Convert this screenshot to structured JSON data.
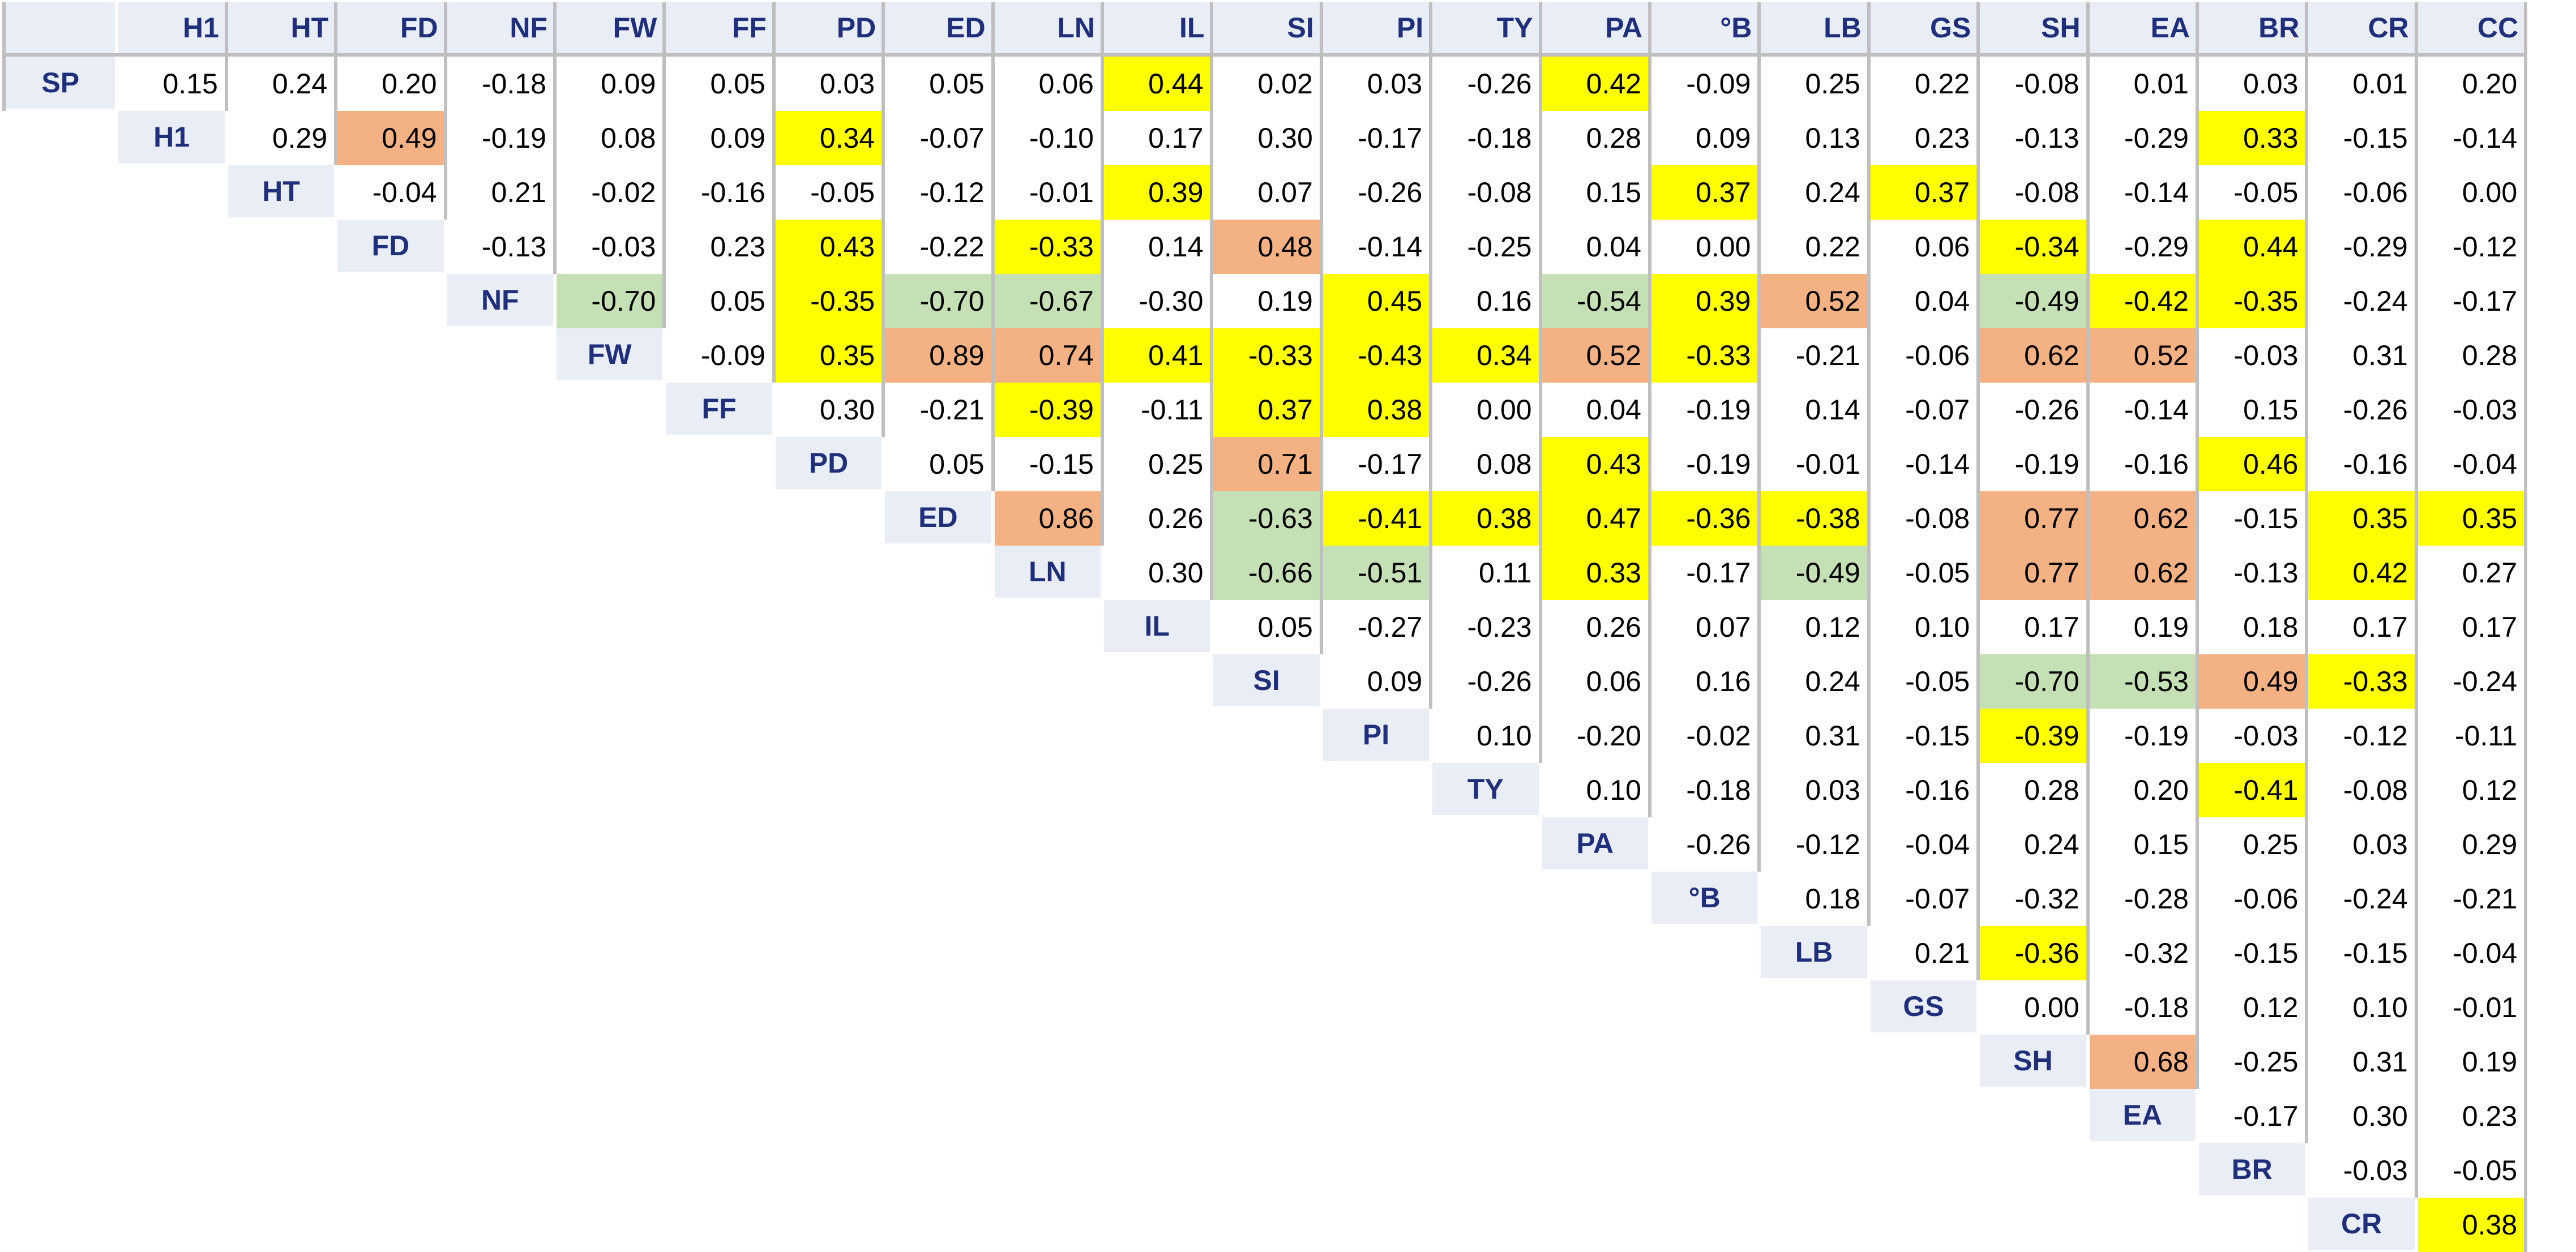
{
  "chart_data": {
    "type": "heatmap",
    "columns": [
      "H1",
      "HT",
      "FD",
      "NF",
      "FW",
      "FF",
      "PD",
      "ED",
      "LN",
      "IL",
      "SI",
      "PI",
      "TY",
      "PA",
      "°B",
      "LB",
      "GS",
      "SH",
      "EA",
      "BR",
      "CR",
      "CC"
    ],
    "rows": [
      "SP",
      "H1",
      "HT",
      "FD",
      "NF",
      "FW",
      "FF",
      "PD",
      "ED",
      "LN",
      "IL",
      "SI",
      "PI",
      "TY",
      "PA",
      "°B",
      "LB",
      "GS",
      "SH",
      "EA",
      "BR",
      "CR"
    ],
    "values": [
      [
        "0.15",
        "0.24",
        "0.20",
        "-0.18",
        "0.09",
        "0.05",
        "0.03",
        "0.05",
        "0.06",
        "0.44",
        "0.02",
        "0.03",
        "-0.26",
        "0.42",
        "-0.09",
        "0.25",
        "0.22",
        "-0.08",
        "0.01",
        "0.03",
        "0.01",
        "0.20"
      ],
      [
        "0.29",
        "0.49",
        "-0.19",
        "0.08",
        "0.09",
        "0.34",
        "-0.07",
        "-0.10",
        "0.17",
        "0.30",
        "-0.17",
        "-0.18",
        "0.28",
        "0.09",
        "0.13",
        "0.23",
        "-0.13",
        "-0.29",
        "0.33",
        "-0.15",
        "-0.14"
      ],
      [
        "-0.04",
        "0.21",
        "-0.02",
        "-0.16",
        "-0.05",
        "-0.12",
        "-0.01",
        "0.39",
        "0.07",
        "-0.26",
        "-0.08",
        "0.15",
        "0.37",
        "0.24",
        "0.37",
        "-0.08",
        "-0.14",
        "-0.05",
        "-0.06",
        "0.00"
      ],
      [
        "-0.13",
        "-0.03",
        "0.23",
        "0.43",
        "-0.22",
        "-0.33",
        "0.14",
        "0.48",
        "-0.14",
        "-0.25",
        "0.04",
        "0.00",
        "0.22",
        "0.06",
        "-0.34",
        "-0.29",
        "0.44",
        "-0.29",
        "-0.12"
      ],
      [
        "-0.70",
        "0.05",
        "-0.35",
        "-0.70",
        "-0.67",
        "-0.30",
        "0.19",
        "0.45",
        "0.16",
        "-0.54",
        "0.39",
        "0.52",
        "0.04",
        "-0.49",
        "-0.42",
        "-0.35",
        "-0.24",
        "-0.17"
      ],
      [
        "-0.09",
        "0.35",
        "0.89",
        "0.74",
        "0.41",
        "-0.33",
        "-0.43",
        "0.34",
        "0.52",
        "-0.33",
        "-0.21",
        "-0.06",
        "0.62",
        "0.52",
        "-0.03",
        "0.31",
        "0.28"
      ],
      [
        "0.30",
        "-0.21",
        "-0.39",
        "-0.11",
        "0.37",
        "0.38",
        "0.00",
        "0.04",
        "-0.19",
        "0.14",
        "-0.07",
        "-0.26",
        "-0.14",
        "0.15",
        "-0.26",
        "-0.03"
      ],
      [
        "0.05",
        "-0.15",
        "0.25",
        "0.71",
        "-0.17",
        "0.08",
        "0.43",
        "-0.19",
        "-0.01",
        "-0.14",
        "-0.19",
        "-0.16",
        "0.46",
        "-0.16",
        "-0.04"
      ],
      [
        "0.86",
        "0.26",
        "-0.63",
        "-0.41",
        "0.38",
        "0.47",
        "-0.36",
        "-0.38",
        "-0.08",
        "0.77",
        "0.62",
        "-0.15",
        "0.35",
        "0.35"
      ],
      [
        "0.30",
        "-0.66",
        "-0.51",
        "0.11",
        "0.33",
        "-0.17",
        "-0.49",
        "-0.05",
        "0.77",
        "0.62",
        "-0.13",
        "0.42",
        "0.27"
      ],
      [
        "0.05",
        "-0.27",
        "-0.23",
        "0.26",
        "0.07",
        "0.12",
        "0.10",
        "0.17",
        "0.19",
        "0.18",
        "0.17",
        "0.17"
      ],
      [
        "0.09",
        "-0.26",
        "0.06",
        "0.16",
        "0.24",
        "-0.05",
        "-0.70",
        "-0.53",
        "0.49",
        "-0.33",
        "-0.24"
      ],
      [
        "0.10",
        "-0.20",
        "-0.02",
        "0.31",
        "-0.15",
        "-0.39",
        "-0.19",
        "-0.03",
        "-0.12",
        "-0.11"
      ],
      [
        "0.10",
        "-0.18",
        "0.03",
        "-0.16",
        "0.28",
        "0.20",
        "-0.41",
        "-0.08",
        "0.12"
      ],
      [
        "-0.26",
        "-0.12",
        "-0.04",
        "0.24",
        "0.15",
        "0.25",
        "0.03",
        "0.29"
      ],
      [
        "0.18",
        "-0.07",
        "-0.32",
        "-0.28",
        "-0.06",
        "-0.24",
        "-0.21"
      ],
      [
        "0.21",
        "-0.36",
        "-0.32",
        "-0.15",
        "-0.15",
        "-0.04"
      ],
      [
        "0.00",
        "-0.18",
        "0.12",
        "0.10",
        "-0.01"
      ],
      [
        "0.68",
        "-0.25",
        "0.31",
        "0.19"
      ],
      [
        "-0.17",
        "0.30",
        "0.23"
      ],
      [
        "-0.03",
        "-0.05"
      ],
      [
        "0.38"
      ]
    ],
    "highlight_colors": {
      "yellow": "#FFFF00",
      "orange": "#F4B183",
      "green": "#C5E0B4",
      "none": "#FFFFFF"
    },
    "highlights": [
      [
        "none",
        "none",
        "none",
        "none",
        "none",
        "none",
        "none",
        "none",
        "none",
        "yellow",
        "none",
        "none",
        "none",
        "yellow",
        "none",
        "none",
        "none",
        "none",
        "none",
        "none",
        "none",
        "none"
      ],
      [
        "none",
        "orange",
        "none",
        "none",
        "none",
        "yellow",
        "none",
        "none",
        "none",
        "none",
        "none",
        "none",
        "none",
        "none",
        "none",
        "none",
        "none",
        "none",
        "yellow",
        "none",
        "none"
      ],
      [
        "none",
        "none",
        "none",
        "none",
        "none",
        "none",
        "none",
        "yellow",
        "none",
        "none",
        "none",
        "none",
        "yellow",
        "none",
        "yellow",
        "none",
        "none",
        "none",
        "none",
        "none"
      ],
      [
        "none",
        "none",
        "none",
        "yellow",
        "none",
        "yellow",
        "none",
        "orange",
        "none",
        "none",
        "none",
        "none",
        "none",
        "none",
        "yellow",
        "none",
        "yellow",
        "none",
        "none"
      ],
      [
        "green",
        "none",
        "yellow",
        "green",
        "green",
        "none",
        "none",
        "yellow",
        "none",
        "green",
        "yellow",
        "orange",
        "none",
        "green",
        "yellow",
        "yellow",
        "none",
        "none"
      ],
      [
        "none",
        "yellow",
        "orange",
        "orange",
        "yellow",
        "yellow",
        "yellow",
        "yellow",
        "orange",
        "yellow",
        "none",
        "none",
        "orange",
        "orange",
        "none",
        "none",
        "none"
      ],
      [
        "none",
        "none",
        "yellow",
        "none",
        "yellow",
        "yellow",
        "none",
        "none",
        "none",
        "none",
        "none",
        "none",
        "none",
        "none",
        "none",
        "none"
      ],
      [
        "none",
        "none",
        "none",
        "orange",
        "none",
        "none",
        "yellow",
        "none",
        "none",
        "none",
        "none",
        "none",
        "yellow",
        "none",
        "none"
      ],
      [
        "orange",
        "none",
        "green",
        "yellow",
        "yellow",
        "yellow",
        "yellow",
        "yellow",
        "none",
        "orange",
        "orange",
        "none",
        "yellow",
        "yellow"
      ],
      [
        "none",
        "green",
        "green",
        "none",
        "yellow",
        "none",
        "green",
        "none",
        "orange",
        "orange",
        "none",
        "yellow",
        "none"
      ],
      [
        "none",
        "none",
        "none",
        "none",
        "none",
        "none",
        "none",
        "none",
        "none",
        "none",
        "none",
        "none"
      ],
      [
        "none",
        "none",
        "none",
        "none",
        "none",
        "none",
        "green",
        "green",
        "orange",
        "yellow",
        "none"
      ],
      [
        "none",
        "none",
        "none",
        "none",
        "none",
        "yellow",
        "none",
        "none",
        "none",
        "none"
      ],
      [
        "none",
        "none",
        "none",
        "none",
        "none",
        "none",
        "yellow",
        "none",
        "none"
      ],
      [
        "none",
        "none",
        "none",
        "none",
        "none",
        "none",
        "none",
        "none"
      ],
      [
        "none",
        "none",
        "none",
        "none",
        "none",
        "none",
        "none"
      ],
      [
        "none",
        "yellow",
        "none",
        "none",
        "none",
        "none"
      ],
      [
        "none",
        "none",
        "none",
        "none",
        "none"
      ],
      [
        "orange",
        "none",
        "none",
        "none"
      ],
      [
        "none",
        "none",
        "none"
      ],
      [
        "none",
        "none"
      ],
      [
        "yellow"
      ]
    ],
    "label_background": "#E8EDF6",
    "label_color": "#1F2F7A",
    "separator_color": "#BFBFBF"
  }
}
